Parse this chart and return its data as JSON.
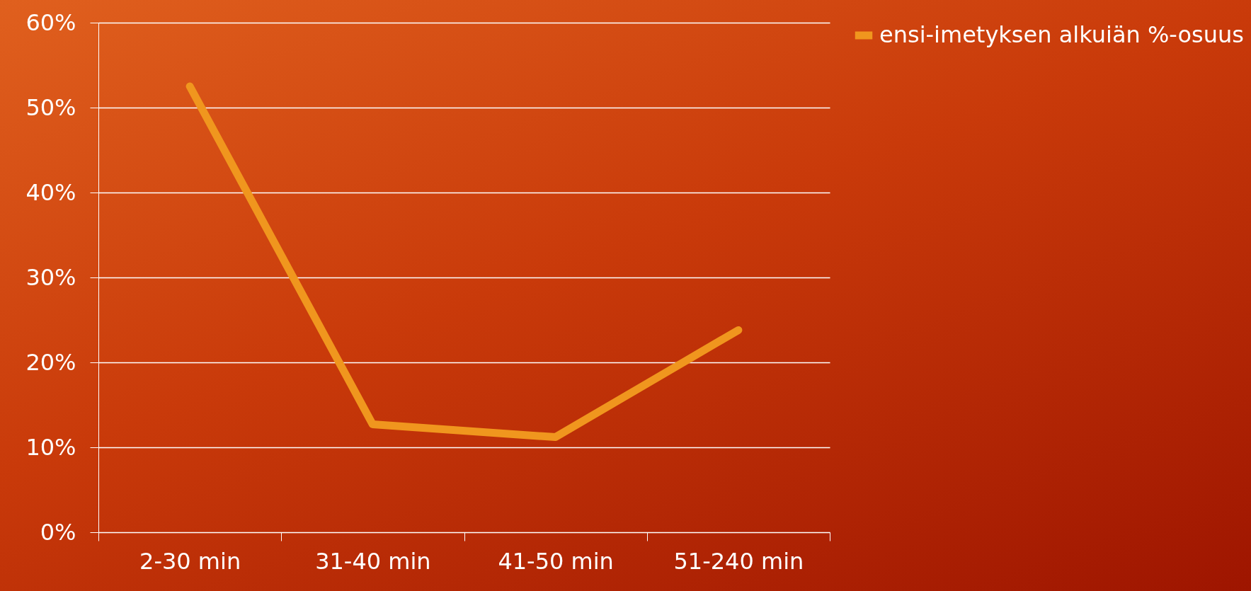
{
  "chart_data": {
    "type": "line",
    "categories": [
      "2-30 min",
      "31-40 min",
      "41-50 min",
      "51-240 min"
    ],
    "series": [
      {
        "name": "ensi-imetyksen alkuiän %-osuus",
        "color": "#f0961e",
        "values": [
          52.5,
          12.7,
          11.2,
          23.8
        ]
      }
    ],
    "ylim": [
      0,
      60
    ],
    "yticks": [
      {
        "value": 0,
        "label": "0%"
      },
      {
        "value": 10,
        "label": "10%"
      },
      {
        "value": 20,
        "label": "20%"
      },
      {
        "value": 30,
        "label": "30%"
      },
      {
        "value": 40,
        "label": "40%"
      },
      {
        "value": 50,
        "label": "50%"
      },
      {
        "value": 60,
        "label": "60%"
      }
    ],
    "grid": "y",
    "legend": "right",
    "marker": "none",
    "line_style": "solid"
  }
}
